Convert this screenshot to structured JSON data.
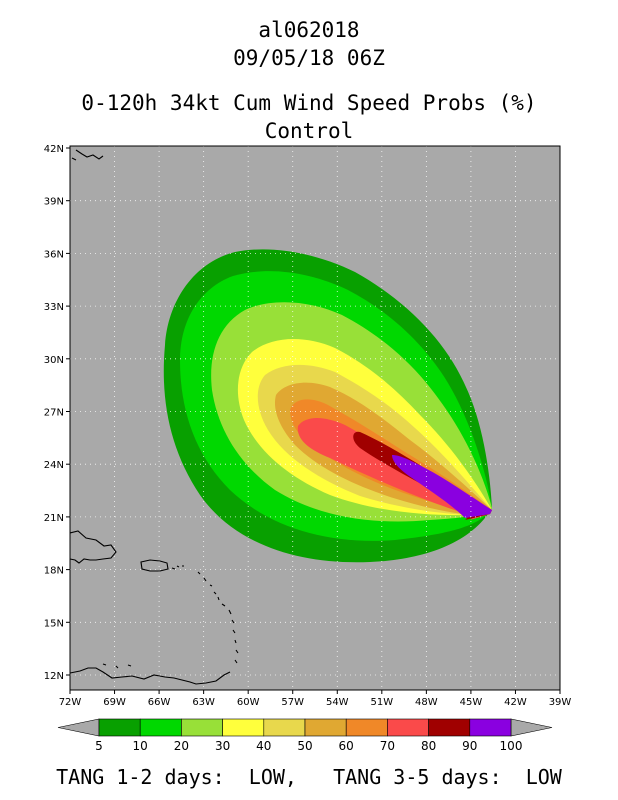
{
  "header": {
    "storm_id": "al062018",
    "datetime": "09/05/18 06Z",
    "product": "0-120h 34kt Cum Wind Speed Probs (%)",
    "run": "Control"
  },
  "map": {
    "lat_ticks": [
      "12N",
      "15N",
      "18N",
      "21N",
      "24N",
      "27N",
      "30N",
      "33N",
      "36N",
      "39N",
      "42N"
    ],
    "lon_ticks": [
      "72W",
      "69W",
      "66W",
      "63W",
      "60W",
      "57W",
      "54W",
      "51W",
      "48W",
      "45W",
      "42W",
      "39W"
    ],
    "background_color": "#a9a9a9"
  },
  "legend": {
    "labels": [
      "5",
      "10",
      "20",
      "30",
      "40",
      "50",
      "60",
      "70",
      "80",
      "90",
      "100"
    ],
    "colors": [
      "#08a000",
      "#00d800",
      "#98e038",
      "#ffff3c",
      "#e8d84c",
      "#e0a832",
      "#f08828",
      "#fa4a4a",
      "#a00000",
      "#8a00e0"
    ]
  },
  "footer": {
    "text": "TANG 1-2 days:  LOW,   TANG 3-5 days:  LOW"
  }
}
